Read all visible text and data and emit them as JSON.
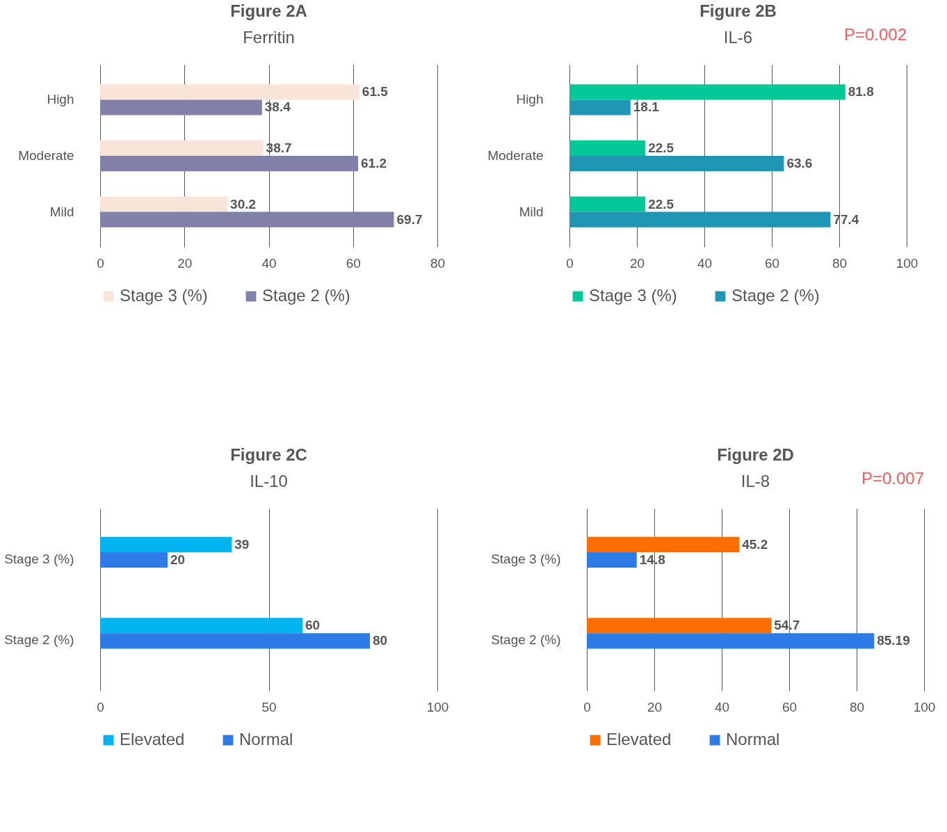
{
  "chart_data": [
    {
      "type": "bar",
      "orientation": "horizontal",
      "title": "Figure 2A",
      "subtitle": "Ferritin",
      "categories": [
        "High",
        "Moderate",
        "Mild"
      ],
      "series": [
        {
          "name": "Stage 3 (%)",
          "color": "#f8e4d8",
          "values": [
            61.5,
            38.7,
            30.2
          ]
        },
        {
          "name": "Stage 2 (%)",
          "color": "#8080a8",
          "values": [
            38.4,
            61.2,
            69.7
          ]
        }
      ],
      "xlim": [
        0,
        80
      ],
      "xticks": [
        0,
        20,
        40,
        60,
        80
      ],
      "grid": "x",
      "legend": "bottom",
      "data_labels": true
    },
    {
      "type": "bar",
      "orientation": "horizontal",
      "title": "Figure 2B",
      "subtitle": "IL-6",
      "annotations": [
        "P=0.002"
      ],
      "categories": [
        "High",
        "Moderate",
        "Mild"
      ],
      "series": [
        {
          "name": "Stage 3 (%)",
          "color": "#00c896",
          "values": [
            81.8,
            22.5,
            22.5
          ]
        },
        {
          "name": "Stage 2 (%)",
          "color": "#1e96b4",
          "values": [
            18.1,
            63.6,
            77.4
          ]
        }
      ],
      "xlim": [
        0,
        100
      ],
      "xticks": [
        0,
        20,
        40,
        60,
        80,
        100
      ],
      "grid": "x",
      "legend": "bottom",
      "data_labels": true
    },
    {
      "type": "bar",
      "orientation": "horizontal",
      "title": "Figure 2C",
      "subtitle": "IL-10",
      "categories": [
        "Stage 3 (%)",
        "Stage 2 (%)"
      ],
      "series": [
        {
          "name": "Elevated",
          "color": "#00b4f0",
          "values": [
            39,
            60
          ]
        },
        {
          "name": "Normal",
          "color": "#2d7be6",
          "values": [
            20,
            80
          ]
        }
      ],
      "xlim": [
        0,
        100
      ],
      "xticks": [
        0,
        50,
        100
      ],
      "grid": "x",
      "legend": "bottom",
      "data_labels": true
    },
    {
      "type": "bar",
      "orientation": "horizontal",
      "title": "Figure 2D",
      "subtitle": "IL-8",
      "annotations": [
        "P=0.007"
      ],
      "categories": [
        "Stage 3 (%)",
        "Stage 2 (%)"
      ],
      "series": [
        {
          "name": "Elevated",
          "color": "#ff6e00",
          "values": [
            45.2,
            54.7
          ]
        },
        {
          "name": "Normal",
          "color": "#2d7be6",
          "values": [
            14.8,
            85.19
          ]
        }
      ],
      "xlim": [
        0,
        100
      ],
      "xticks": [
        0,
        20,
        40,
        60,
        80,
        100
      ],
      "grid": "x",
      "legend": "bottom",
      "data_labels": true
    }
  ]
}
